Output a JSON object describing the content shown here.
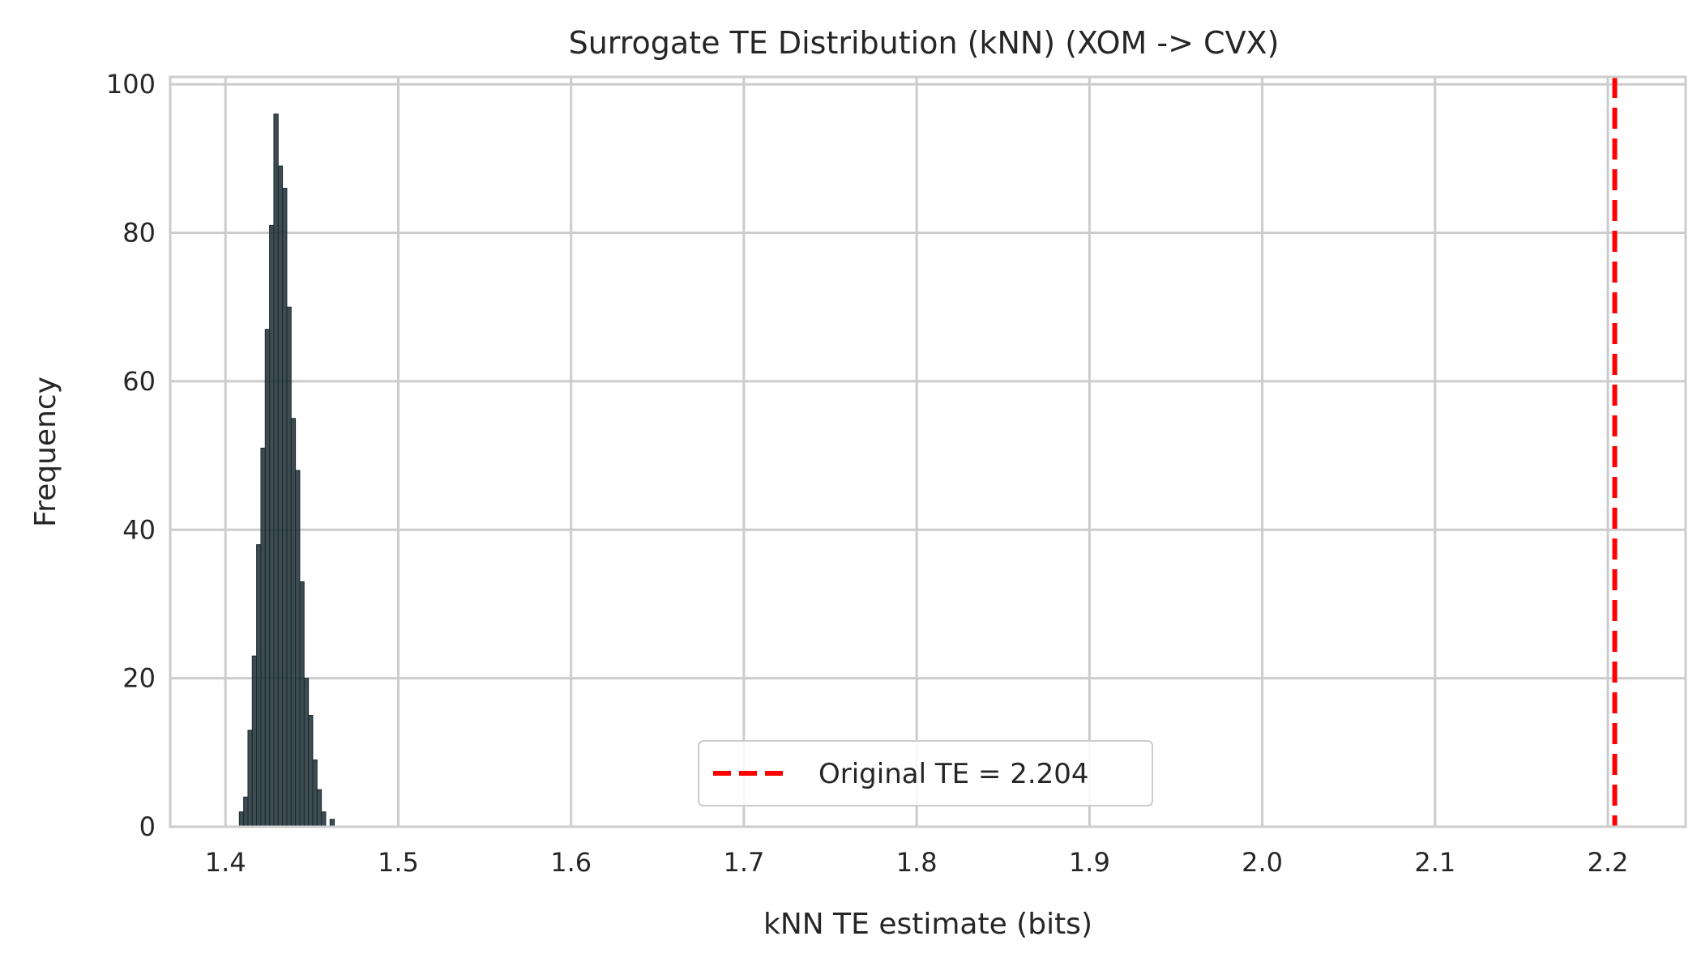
{
  "chart_data": {
    "type": "bar",
    "title": "Surrogate TE Distribution (kNN) (XOM -> CVX)",
    "xlabel": "kNN TE estimate (bits)",
    "ylabel": "Frequency",
    "xlim": [
      1.368,
      2.245
    ],
    "ylim": [
      0,
      101
    ],
    "xticks": [
      1.4,
      1.5,
      1.6,
      1.7,
      1.8,
      1.9,
      2.0,
      2.1,
      2.2
    ],
    "xtick_labels": [
      "1.4",
      "1.5",
      "1.6",
      "1.7",
      "1.8",
      "1.9",
      "2.0",
      "2.1",
      "2.2"
    ],
    "yticks": [
      0,
      20,
      40,
      60,
      80,
      100
    ],
    "ytick_labels": [
      "0",
      "20",
      "40",
      "60",
      "80",
      "100"
    ],
    "grid": true,
    "bin_width": 0.0025,
    "bin_edges_start": 1.408,
    "bin_counts": [
      2,
      4,
      13,
      23,
      38,
      51,
      67,
      81,
      96,
      89,
      86,
      70,
      55,
      48,
      33,
      20,
      15,
      9,
      5,
      2,
      0,
      1
    ],
    "bar_color": "#1c2d33",
    "original_te": 2.204,
    "original_line_color": "#ff0000",
    "legend": {
      "location": "lower center",
      "label": "Original TE = 2.204"
    }
  }
}
